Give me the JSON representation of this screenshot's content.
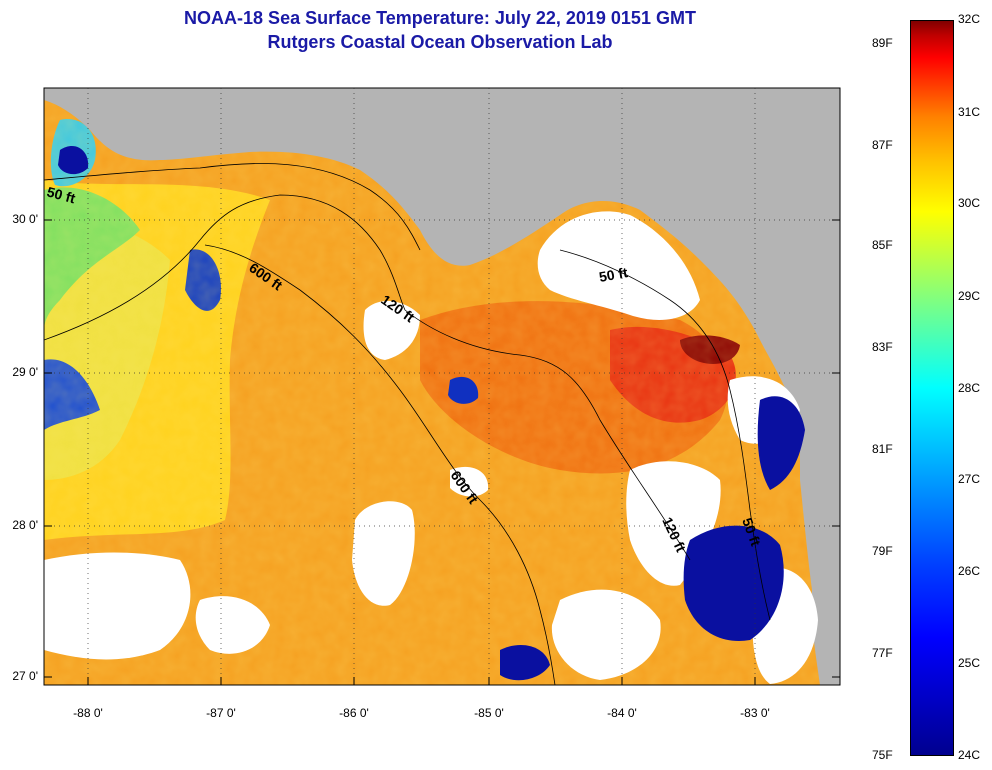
{
  "title": {
    "line1": "NOAA-18 Sea Surface Temperature:  July 22, 2019 0151 GMT",
    "line2": "Rutgers Coastal Ocean Observation Lab"
  },
  "map": {
    "lat_labels": [
      "30 0'",
      "29 0'",
      "28 0'",
      "27 0'"
    ],
    "lon_labels": [
      "-88 0'",
      "-87 0'",
      "-86 0'",
      "-85 0'",
      "-84 0'",
      "-83 0'"
    ],
    "contour_labels": [
      "50 ft",
      "600 ft",
      "120 ft",
      "50 ft",
      "600 ft",
      "120 ft",
      "50 ft"
    ],
    "colors": {
      "land": "#b4b4b4",
      "clouds": "#ffffff",
      "warm_water": "#f5a020",
      "mid_water": "#ffd21e",
      "cool_water": "#0a10a0"
    }
  },
  "colorbar": {
    "celsius": [
      "32C",
      "31C",
      "30C",
      "29C",
      "28C",
      "27C",
      "26C",
      "25C",
      "24C"
    ],
    "fahrenheit": [
      "89F",
      "87F",
      "85F",
      "83F",
      "81F",
      "79F",
      "77F",
      "75F"
    ]
  }
}
